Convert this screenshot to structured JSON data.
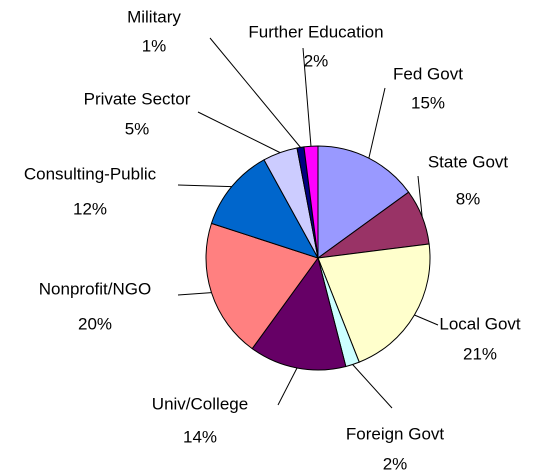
{
  "chart_data": {
    "type": "pie",
    "categories": [
      "Fed Govt",
      "State Govt",
      "Local Govt",
      "Foreign Govt",
      "Univ/College",
      "Nonprofit/NGO",
      "Consulting-Public",
      "Private Sector",
      "Military",
      "Further Education"
    ],
    "values": [
      15,
      8,
      21,
      2,
      14,
      20,
      12,
      5,
      1,
      2
    ],
    "value_labels": [
      "15%",
      "8%",
      "21%",
      "2%",
      "14%",
      "20%",
      "12%",
      "5%",
      "1%",
      "2%"
    ],
    "colors": [
      "#9999ff",
      "#993366",
      "#ffffcc",
      "#ccffff",
      "#660066",
      "#ff8080",
      "#0066cc",
      "#ccccff",
      "#000080",
      "#ff00ff"
    ]
  }
}
